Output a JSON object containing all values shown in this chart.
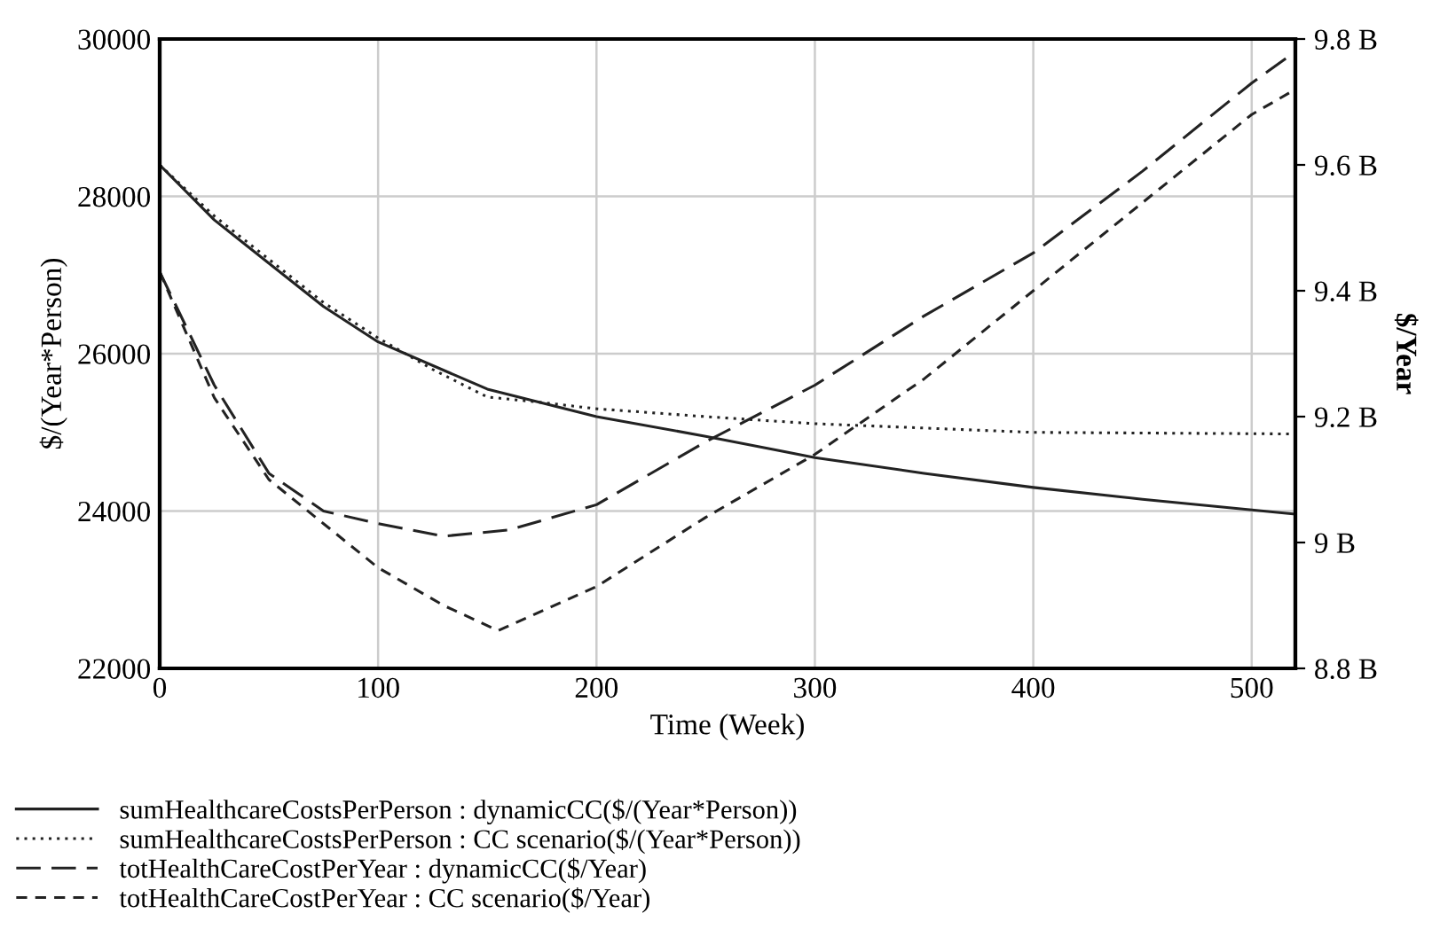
{
  "chart_data": {
    "type": "line",
    "xlabel": "Time (Week)",
    "ylabel": "$/(Year*Person)",
    "y2label": "$/Year",
    "xlim": [
      0,
      520
    ],
    "xticks": [
      0,
      100,
      200,
      300,
      400,
      500
    ],
    "ylim": [
      22000,
      30000
    ],
    "yticks": [
      22000,
      24000,
      26000,
      28000,
      30000
    ],
    "y2lim": [
      8.8,
      9.8
    ],
    "y2ticks": [
      {
        "value": 8.8,
        "label": "8.8 B"
      },
      {
        "value": 9.0,
        "label": "9 B"
      },
      {
        "value": 9.2,
        "label": "9.2 B"
      },
      {
        "value": 9.4,
        "label": "9.4 B"
      },
      {
        "value": 9.6,
        "label": "9.6 B"
      },
      {
        "value": 9.8,
        "label": "9.8 B"
      }
    ],
    "grid": true,
    "legend": "bottom",
    "marker": "none",
    "series": [
      {
        "name": "sumHealthcareCostsPerPerson : dynamicCC($/(Year*Person))",
        "color": "#222222",
        "line_style": "solid",
        "x": [
          0,
          25,
          50,
          75,
          100,
          150,
          200,
          250,
          300,
          350,
          400,
          450,
          520
        ],
        "values": [
          28400,
          27700,
          27150,
          26600,
          26150,
          25550,
          25200,
          24950,
          24680,
          24480,
          24300,
          24150,
          23960
        ]
      },
      {
        "name": "sumHealthcareCostsPerPerson : CC scenario($/(Year*Person))",
        "color": "#222222",
        "line_style": "dotted",
        "x": [
          0,
          25,
          50,
          75,
          100,
          125,
          150,
          175,
          200,
          250,
          300,
          400,
          520
        ],
        "values": [
          28400,
          27750,
          27200,
          26650,
          26200,
          25800,
          25450,
          25380,
          25300,
          25200,
          25110,
          25000,
          24980
        ]
      },
      {
        "name": "totHealthCareCostPerYear : dynamicCC($/Year)",
        "color": "#222222",
        "line_style": "longdash",
        "axis": "y2",
        "x": [
          0,
          25,
          50,
          75,
          100,
          130,
          160,
          200,
          250,
          300,
          350,
          400,
          450,
          500,
          520
        ],
        "values": [
          9.43,
          9.25,
          9.11,
          9.05,
          9.03,
          9.01,
          9.02,
          9.06,
          9.16,
          9.25,
          9.36,
          9.46,
          9.59,
          9.73,
          9.78
        ]
      },
      {
        "name": "totHealthCareCostPerYear : CC scenario($/Year)",
        "color": "#222222",
        "line_style": "dashed",
        "axis": "y2",
        "x": [
          0,
          25,
          50,
          75,
          100,
          130,
          155,
          200,
          250,
          300,
          350,
          400,
          450,
          500,
          520
        ],
        "values": [
          9.43,
          9.23,
          9.1,
          9.03,
          8.96,
          8.9,
          8.86,
          8.93,
          9.04,
          9.14,
          9.26,
          9.4,
          9.54,
          9.68,
          9.72
        ]
      }
    ]
  }
}
